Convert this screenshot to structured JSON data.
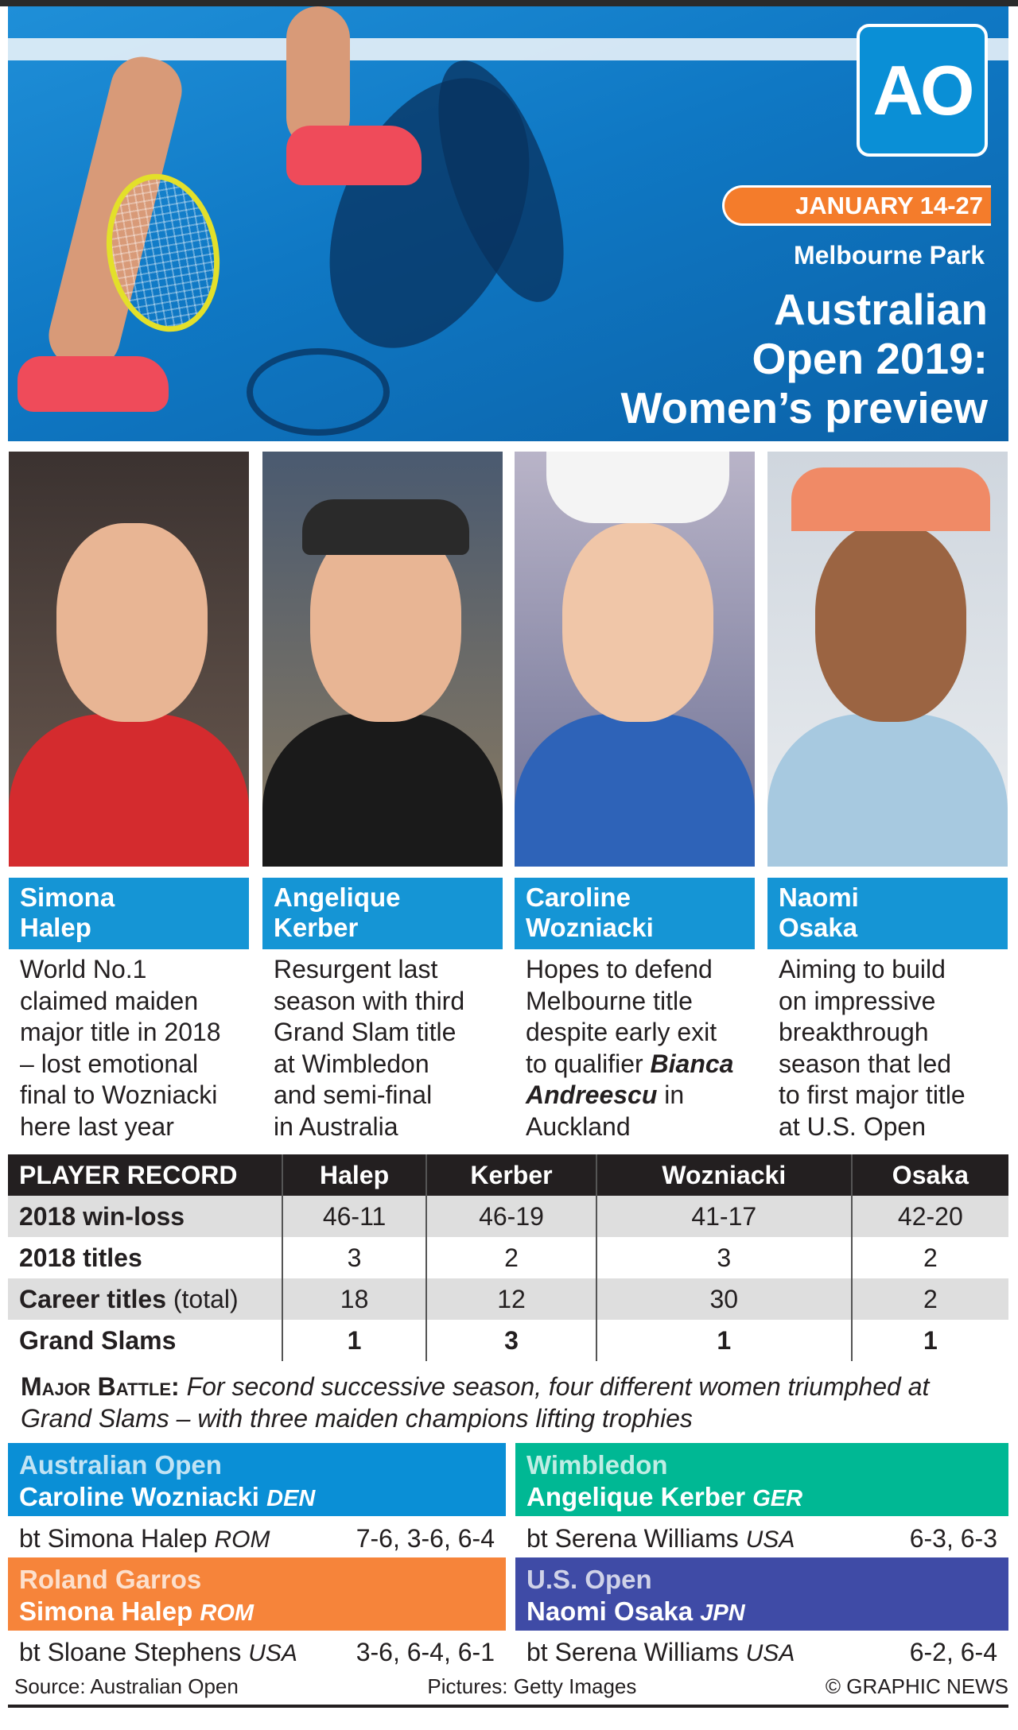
{
  "header": {
    "logo": "AO",
    "dates": "JANUARY 14-27",
    "venue": "Melbourne Park",
    "title_lines": [
      "Australian",
      "Open 2019:",
      "Women’s preview"
    ]
  },
  "players": [
    {
      "name_lines": [
        "Simona",
        "Halep"
      ],
      "desc_lines": [
        "World No.1",
        "claimed maiden",
        "major title in 2018",
        "– lost emotional",
        "final to Wozniacki",
        "here last year"
      ],
      "photo_colors": [
        "#3b3230",
        "#d42b2e"
      ]
    },
    {
      "name_lines": [
        "Angelique",
        "Kerber"
      ],
      "desc_lines": [
        "Resurgent last",
        "season with third",
        "Grand Slam title",
        "at Wimbledon",
        "and semi-final",
        "in Australia"
      ],
      "photo_colors": [
        "#4a5a70",
        "#1a1a1a"
      ]
    },
    {
      "name_lines": [
        "Caroline",
        "Wozniacki"
      ],
      "desc": {
        "line1": "Hopes to defend",
        "line2": "Melbourne title",
        "line3": "despite early exit",
        "line4a": "to qualifier ",
        "line4b": "Bianca",
        "line5a": "Andreescu",
        "line5b": " in",
        "line6": "Auckland"
      },
      "photo_colors": [
        "#b9b4c8",
        "#2e63b8"
      ]
    },
    {
      "name_lines": [
        "Naomi",
        "Osaka"
      ],
      "desc_lines": [
        "Aiming to build",
        "on impressive",
        "breakthrough",
        "season that led",
        "to first major title",
        "at U.S. Open"
      ],
      "photo_colors": [
        "#cfd6de",
        "#a7c9e0"
      ]
    }
  ],
  "record": {
    "header": [
      "PLAYER RECORD",
      "Halep",
      "Kerber",
      "Wozniacki",
      "Osaka"
    ],
    "rows": [
      {
        "label": "2018 win-loss",
        "values": [
          "46-11",
          "46-19",
          "41-17",
          "42-20"
        ]
      },
      {
        "label": "2018 titles",
        "values": [
          "3",
          "2",
          "3",
          "2"
        ]
      },
      {
        "label": "Career titles",
        "label_suffix": " (total)",
        "values": [
          "18",
          "12",
          "30",
          "2"
        ]
      },
      {
        "label": "Grand Slams",
        "values": [
          "1",
          "3",
          "1",
          "1"
        ]
      }
    ]
  },
  "battle": {
    "lead": "Major Battle:",
    "text": " For second successive season, four different women triumphed at Grand Slams – with three maiden champions lifting trophies"
  },
  "slams": [
    {
      "event": "Australian Open",
      "winner": "Caroline Wozniacki",
      "winner_country": "DEN",
      "opponent": "bt Simona Halep",
      "opponent_country": "ROM",
      "score": "7-6, 3-6, 6-4",
      "color": "#0a8fd6"
    },
    {
      "event": "Wimbledon",
      "winner": "Angelique Kerber",
      "winner_country": "GER",
      "opponent": "bt Serena Williams",
      "opponent_country": "USA",
      "score": "6-3, 6-3",
      "color": "#00b894"
    },
    {
      "event": "Roland Garros",
      "winner": "Simona Halep",
      "winner_country": "ROM",
      "opponent": "bt Sloane Stephens",
      "opponent_country": "USA",
      "score": "3-6, 6-4, 6-1",
      "color": "#f6843a"
    },
    {
      "event": "U.S. Open",
      "winner": "Naomi Osaka",
      "winner_country": "JPN",
      "opponent": "bt Serena Williams",
      "opponent_country": "USA",
      "score": "6-2, 6-4",
      "color": "#3f4ba6"
    }
  ],
  "footer": {
    "source": "Source: Australian Open",
    "pictures": "Pictures: Getty Images",
    "credit": "© GRAPHIC NEWS"
  }
}
